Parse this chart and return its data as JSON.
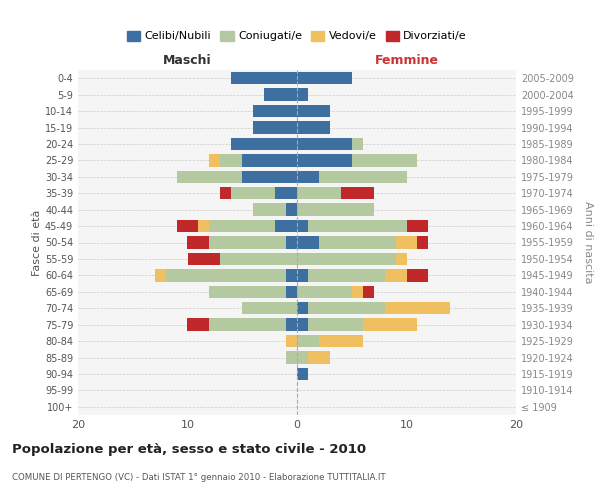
{
  "age_groups": [
    "100+",
    "95-99",
    "90-94",
    "85-89",
    "80-84",
    "75-79",
    "70-74",
    "65-69",
    "60-64",
    "55-59",
    "50-54",
    "45-49",
    "40-44",
    "35-39",
    "30-34",
    "25-29",
    "20-24",
    "15-19",
    "10-14",
    "5-9",
    "0-4"
  ],
  "birth_years": [
    "≤ 1909",
    "1910-1914",
    "1915-1919",
    "1920-1924",
    "1925-1929",
    "1930-1934",
    "1935-1939",
    "1940-1944",
    "1945-1949",
    "1950-1954",
    "1955-1959",
    "1960-1964",
    "1965-1969",
    "1970-1974",
    "1975-1979",
    "1980-1984",
    "1985-1989",
    "1990-1994",
    "1995-1999",
    "2000-2004",
    "2005-2009"
  ],
  "maschi": {
    "celibi": [
      0,
      0,
      0,
      0,
      0,
      1,
      0,
      1,
      1,
      0,
      1,
      2,
      1,
      2,
      5,
      5,
      6,
      4,
      4,
      3,
      6
    ],
    "coniugati": [
      0,
      0,
      0,
      1,
      0,
      7,
      5,
      7,
      11,
      7,
      7,
      6,
      3,
      4,
      6,
      2,
      0,
      0,
      0,
      0,
      0
    ],
    "vedovi": [
      0,
      0,
      0,
      0,
      1,
      0,
      0,
      0,
      1,
      0,
      0,
      1,
      0,
      0,
      0,
      1,
      0,
      0,
      0,
      0,
      0
    ],
    "divorziati": [
      0,
      0,
      0,
      0,
      0,
      2,
      0,
      0,
      0,
      3,
      2,
      2,
      0,
      1,
      0,
      0,
      0,
      0,
      0,
      0,
      0
    ]
  },
  "femmine": {
    "nubili": [
      0,
      0,
      1,
      0,
      0,
      1,
      1,
      0,
      1,
      0,
      2,
      1,
      0,
      0,
      2,
      5,
      5,
      3,
      3,
      1,
      5
    ],
    "coniugate": [
      0,
      0,
      0,
      1,
      2,
      5,
      7,
      5,
      7,
      9,
      7,
      9,
      7,
      4,
      8,
      6,
      1,
      0,
      0,
      0,
      0
    ],
    "vedove": [
      0,
      0,
      0,
      2,
      4,
      5,
      6,
      1,
      2,
      1,
      2,
      0,
      0,
      0,
      0,
      0,
      0,
      0,
      0,
      0,
      0
    ],
    "divorziate": [
      0,
      0,
      0,
      0,
      0,
      0,
      0,
      1,
      2,
      0,
      1,
      2,
      0,
      3,
      0,
      0,
      0,
      0,
      0,
      0,
      0
    ]
  },
  "colors": {
    "celibi": "#3d6fa0",
    "coniugati": "#b5c9a0",
    "vedovi": "#f0c060",
    "divorziati": "#c0282a"
  },
  "title": "Popolazione per età, sesso e stato civile - 2010",
  "subtitle": "COMUNE DI PERTENGO (VC) - Dati ISTAT 1° gennaio 2010 - Elaborazione TUTTITALIA.IT",
  "xlabel_left": "Maschi",
  "xlabel_right": "Femmine",
  "ylabel_left": "Fasce di età",
  "ylabel_right": "Anni di nascita",
  "xlim": 20,
  "legend_labels": [
    "Celibi/Nubili",
    "Coniugati/e",
    "Vedovi/e",
    "Divorziati/e"
  ],
  "bg_color": "#ffffff",
  "grid_color": "#cccccc",
  "ax_bg_color": "#f5f5f5"
}
